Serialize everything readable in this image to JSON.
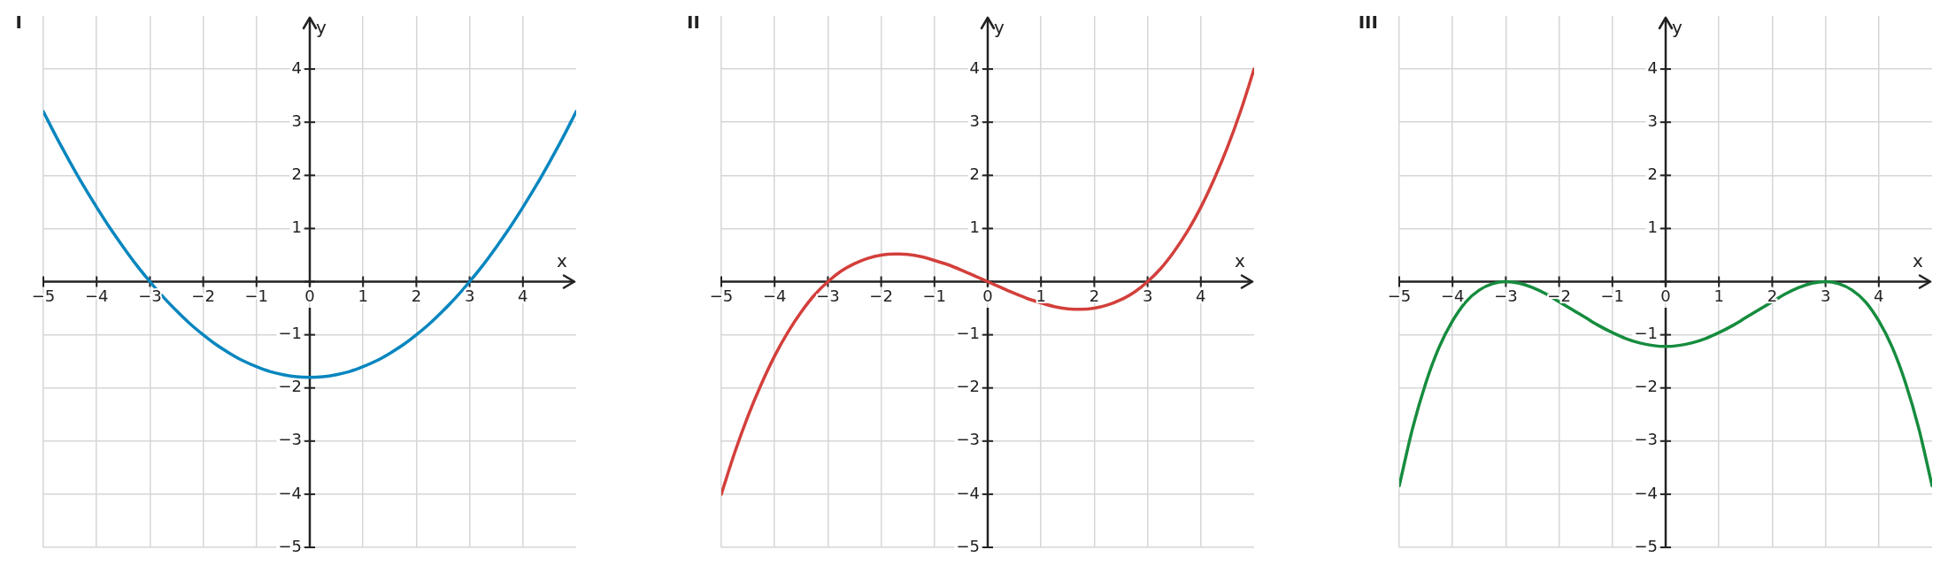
{
  "chart_data": [
    {
      "type": "line",
      "title": "I",
      "xlabel": "x",
      "ylabel": "y",
      "xlim": [
        -5,
        5
      ],
      "ylim": [
        -5,
        5
      ],
      "xticks": [
        {
          "value": -5,
          "label": "−5"
        },
        {
          "value": -4,
          "label": "−4"
        },
        {
          "value": -3,
          "label": "−3"
        },
        {
          "value": -2,
          "label": "−2"
        },
        {
          "value": -1,
          "label": "−1"
        },
        0,
        1,
        2,
        3,
        4
      ],
      "yticks": [
        {
          "value": -5,
          "label": "−5"
        },
        {
          "value": -4,
          "label": "−4"
        },
        {
          "value": -3,
          "label": "−3"
        },
        {
          "value": -2,
          "label": "−2"
        },
        {
          "value": -1,
          "label": "−1"
        },
        {
          "value": 0,
          "label": null
        },
        1,
        2,
        3,
        4
      ],
      "grid": true,
      "x": [
        -5,
        -4.75,
        -4.5,
        -4.25,
        -4,
        -3.75,
        -3.5,
        -3.25,
        -3,
        -2.75,
        -2.5,
        -2.25,
        -2,
        -1.75,
        -1.5,
        -1.25,
        -1,
        -0.75,
        -0.5,
        -0.25,
        0,
        0.25,
        0.5,
        0.75,
        1,
        1.25,
        1.5,
        1.75,
        2,
        2.25,
        2.5,
        2.75,
        3,
        3.25,
        3.5,
        3.75,
        4,
        4.25,
        4.5,
        4.75,
        5
      ],
      "series": [
        {
          "color": "#0786bf",
          "values": [
            3.2,
            2.71,
            2.25,
            1.81,
            1.4,
            1.01,
            0.65,
            0.31,
            0,
            -0.29,
            -0.55,
            -0.79,
            -1,
            -1.19,
            -1.35,
            -1.49,
            -1.6,
            -1.69,
            -1.75,
            -1.79,
            -1.8,
            -1.79,
            -1.75,
            -1.69,
            -1.6,
            -1.49,
            -1.35,
            -1.19,
            -1,
            -0.79,
            -0.55,
            -0.29,
            0,
            0.31,
            0.65,
            1.01,
            1.4,
            1.81,
            2.25,
            2.71,
            3.2
          ]
        }
      ]
    },
    {
      "type": "line",
      "title": "II",
      "xlabel": "x",
      "ylabel": "y",
      "xlim": [
        -5,
        5
      ],
      "ylim": [
        -5,
        5
      ],
      "xticks": [
        {
          "value": -5,
          "label": "−5"
        },
        {
          "value": -4,
          "label": "−4"
        },
        {
          "value": -3,
          "label": "−3"
        },
        {
          "value": -2,
          "label": "−2"
        },
        {
          "value": -1,
          "label": "−1"
        },
        0,
        1,
        2,
        3,
        4
      ],
      "yticks": [
        {
          "value": -5,
          "label": "−5"
        },
        {
          "value": -4,
          "label": "−4"
        },
        {
          "value": -3,
          "label": "−3"
        },
        {
          "value": -2,
          "label": "−2"
        },
        {
          "value": -1,
          "label": "−1"
        },
        {
          "value": 0,
          "label": null
        },
        1,
        2,
        3,
        4
      ],
      "grid": true,
      "x": [
        -5,
        -4.75,
        -4.5,
        -4.25,
        -4,
        -3.75,
        -3.5,
        -3.25,
        -3,
        -2.75,
        -2.5,
        -2.25,
        -2,
        -1.75,
        -1.5,
        -1.25,
        -1,
        -0.75,
        -0.5,
        -0.25,
        0,
        0.25,
        0.5,
        0.75,
        1,
        1.25,
        1.5,
        1.75,
        2,
        2.25,
        2.5,
        2.75,
        3,
        3.25,
        3.5,
        3.75,
        4,
        4.25,
        4.5,
        4.75,
        5
      ],
      "series": [
        {
          "color": "#d33f3b",
          "values": [
            -4,
            -3.22,
            -2.53,
            -1.93,
            -1.4,
            -0.95,
            -0.57,
            -0.25,
            0,
            0.2,
            0.34,
            0.44,
            0.5,
            0.52,
            0.51,
            0.47,
            0.4,
            0.32,
            0.22,
            0.11,
            0,
            -0.11,
            -0.22,
            -0.32,
            -0.4,
            -0.47,
            -0.51,
            -0.52,
            -0.5,
            -0.44,
            -0.34,
            -0.2,
            0,
            0.25,
            0.57,
            0.95,
            1.4,
            1.93,
            2.53,
            3.22,
            4
          ]
        }
      ]
    },
    {
      "type": "line",
      "title": "III",
      "xlabel": "x",
      "ylabel": "y",
      "xlim": [
        -5,
        5
      ],
      "ylim": [
        -5,
        5
      ],
      "xticks": [
        {
          "value": -5,
          "label": "−5"
        },
        {
          "value": -4,
          "label": "−4"
        },
        {
          "value": -3,
          "label": "−3"
        },
        {
          "value": -2,
          "label": "−2"
        },
        {
          "value": -1,
          "label": "−1"
        },
        0,
        1,
        2,
        3,
        4
      ],
      "yticks": [
        {
          "value": -5,
          "label": "−5"
        },
        {
          "value": -4,
          "label": "−4"
        },
        {
          "value": -3,
          "label": "−3"
        },
        {
          "value": -2,
          "label": "−2"
        },
        {
          "value": -1,
          "label": "−1"
        },
        {
          "value": 0,
          "label": null
        },
        1,
        2,
        3,
        4
      ],
      "grid": true,
      "x": [
        -5,
        -4.75,
        -4.5,
        -4.25,
        -4,
        -3.75,
        -3.5,
        -3.25,
        -3,
        -2.75,
        -2.5,
        -2.25,
        -2,
        -1.75,
        -1.5,
        -1.25,
        -1,
        -0.75,
        -0.5,
        -0.25,
        0,
        0.25,
        0.5,
        0.75,
        1,
        1.25,
        1.5,
        1.75,
        2,
        2.25,
        2.5,
        2.75,
        3,
        3.25,
        3.5,
        3.75,
        4,
        4.25,
        4.5,
        4.75,
        5
      ],
      "series": [
        {
          "color": "#168c3e",
          "values": [
            -3.84,
            -2.76,
            -1.9,
            -1.23,
            -0.74,
            -0.38,
            -0.16,
            -0.04,
            0,
            -0.03,
            -0.11,
            -0.23,
            -0.38,
            -0.53,
            -0.68,
            -0.83,
            -0.96,
            -1.07,
            -1.15,
            -1.2,
            -1.22,
            -1.2,
            -1.15,
            -1.07,
            -0.96,
            -0.83,
            -0.68,
            -0.53,
            -0.38,
            -0.23,
            -0.11,
            -0.03,
            0,
            -0.04,
            -0.16,
            -0.38,
            -0.74,
            -1.23,
            -1.9,
            -2.76,
            -3.84
          ]
        }
      ]
    }
  ]
}
